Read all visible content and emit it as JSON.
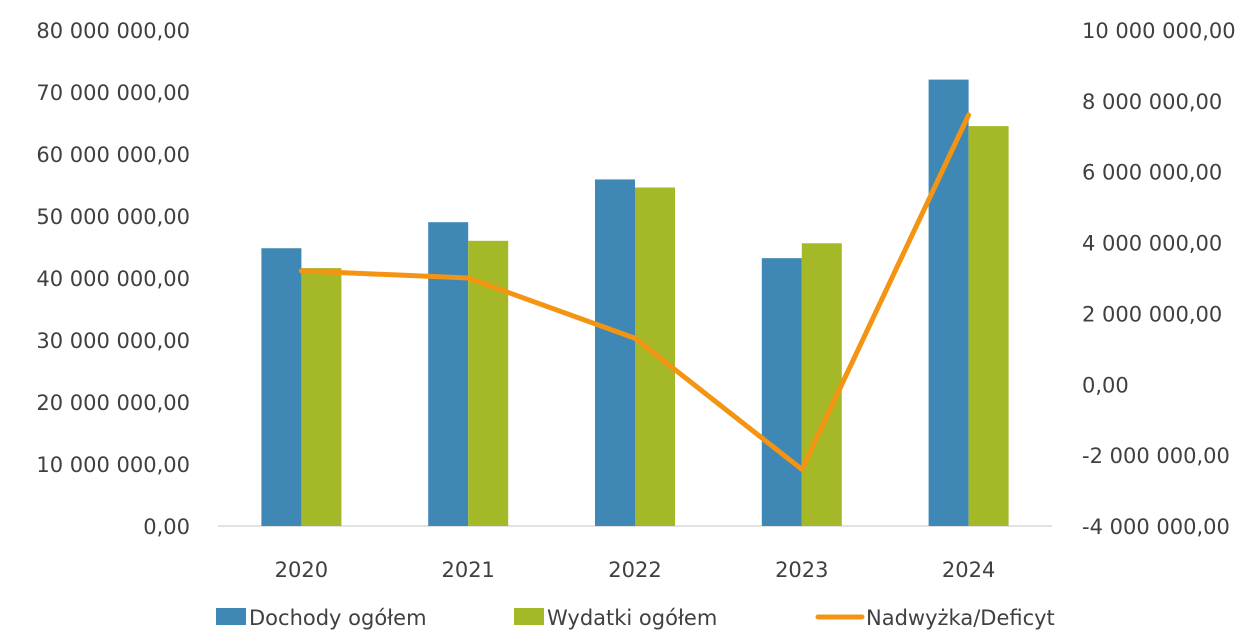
{
  "chart_data": {
    "type": "bar",
    "categories": [
      "2020",
      "2021",
      "2022",
      "2023",
      "2024"
    ],
    "series": [
      {
        "name": "Dochody ogółem",
        "type": "bar",
        "axis": "left",
        "color": "#3f87b5",
        "values": [
          44800000,
          49000000,
          55900000,
          43200000,
          72000000
        ]
      },
      {
        "name": "Wydatki ogółem",
        "type": "bar",
        "axis": "left",
        "color": "#a5b928",
        "values": [
          41600000,
          46000000,
          54600000,
          45600000,
          64500000
        ]
      },
      {
        "name": "Nadwyżka/Deficyt",
        "type": "line",
        "axis": "right",
        "color": "#f39513",
        "values": [
          3200000,
          3000000,
          1300000,
          -2400000,
          7600000
        ]
      }
    ],
    "ylim_left": [
      0,
      80000000
    ],
    "ylim_right": [
      -4000000,
      10000000
    ],
    "left_ticks": [
      "0,00",
      "10 000 000,00",
      "20 000 000,00",
      "30 000 000,00",
      "40 000 000,00",
      "50 000 000,00",
      "60 000 000,00",
      "70 000 000,00",
      "80 000 000,00"
    ],
    "right_ticks": [
      "-4 000 000,00",
      "-2 000 000,00",
      "0,00",
      "2 000 000,00",
      "4 000 000,00",
      "6 000 000,00",
      "8 000 000,00",
      "10 000 000,00"
    ],
    "legend_position": "bottom",
    "grid": false
  }
}
